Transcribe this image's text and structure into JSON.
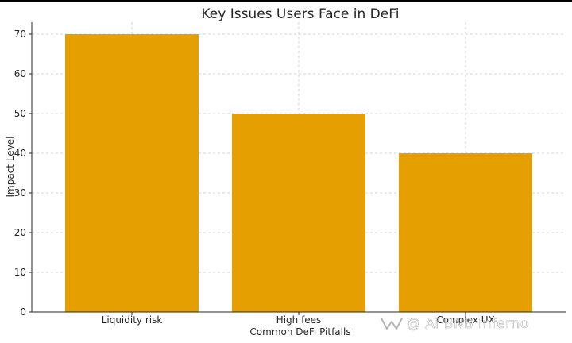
{
  "chart_data": {
    "type": "bar",
    "title": "Key Issues Users Face in DeFi",
    "xlabel": "Common DeFi Pitfalls",
    "ylabel": "Impact Level",
    "categories": [
      "Liquidity risk",
      "High fees",
      "Complex UX"
    ],
    "values": [
      70,
      50,
      40
    ],
    "ylim": [
      0,
      73
    ],
    "yticks": [
      0,
      10,
      20,
      30,
      40,
      50,
      60,
      70
    ],
    "grid": true,
    "bar_color": "#e69f00"
  },
  "watermark": {
    "text": "@ Ai BNB Inferno",
    "icon": "wechat-channels-icon"
  }
}
